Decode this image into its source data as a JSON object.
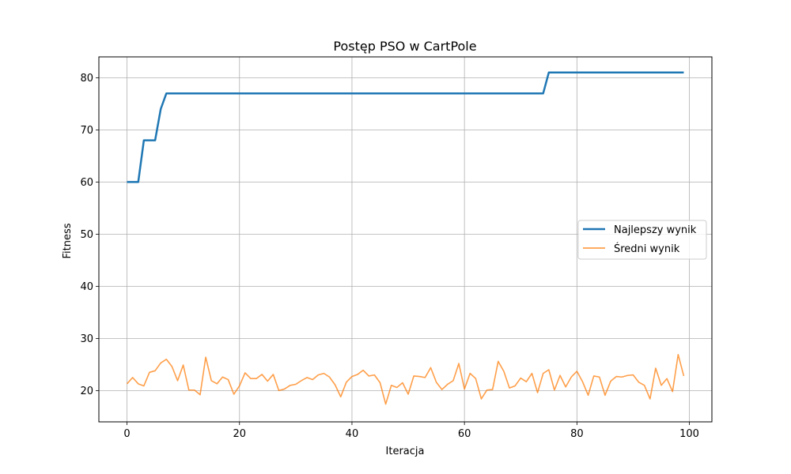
{
  "chart_data": {
    "type": "line",
    "title": "Postęp PSO w CartPole",
    "xlabel": "Iteracja",
    "ylabel": "Fitness",
    "xlim": [
      -5,
      104
    ],
    "ylim": [
      14,
      84
    ],
    "xticks": [
      0,
      20,
      40,
      60,
      80,
      100
    ],
    "yticks": [
      20,
      30,
      40,
      50,
      60,
      70,
      80
    ],
    "grid": true,
    "legend_position": "center-right",
    "series": [
      {
        "name": "Najlepszy wynik",
        "color": "#1f77b4",
        "x": [
          0,
          2,
          3,
          5,
          6,
          7,
          74,
          75,
          99
        ],
        "values": [
          60,
          60,
          68,
          68,
          74,
          77,
          77,
          81,
          81
        ]
      },
      {
        "name": "Średni wynik",
        "color": "#ff7f0e",
        "x": [
          0,
          1,
          2,
          3,
          4,
          5,
          6,
          7,
          8,
          9,
          10,
          11,
          12,
          13,
          14,
          15,
          16,
          17,
          18,
          19,
          20,
          21,
          22,
          23,
          24,
          25,
          26,
          27,
          28,
          29,
          30,
          31,
          32,
          33,
          34,
          35,
          36,
          37,
          38,
          39,
          40,
          41,
          42,
          43,
          44,
          45,
          46,
          47,
          48,
          49,
          50,
          51,
          52,
          53,
          54,
          55,
          56,
          57,
          58,
          59,
          60,
          61,
          62,
          63,
          64,
          65,
          66,
          67,
          68,
          69,
          70,
          71,
          72,
          73,
          74,
          75,
          76,
          77,
          78,
          79,
          80,
          81,
          82,
          83,
          84,
          85,
          86,
          87,
          88,
          89,
          90,
          91,
          92,
          93,
          94,
          95,
          96,
          97,
          98,
          99
        ],
        "values": [
          21.3,
          22.5,
          21.3,
          20.9,
          23.5,
          23.8,
          25.3,
          26.0,
          24.6,
          21.9,
          24.9,
          20.1,
          20.1,
          19.2,
          26.4,
          21.9,
          21.3,
          22.6,
          22.1,
          19.3,
          20.9,
          23.4,
          22.3,
          22.3,
          23.1,
          21.8,
          23.1,
          20.0,
          20.3,
          21.0,
          21.2,
          21.9,
          22.5,
          22.1,
          23.0,
          23.3,
          22.6,
          21.1,
          18.8,
          21.6,
          22.7,
          23.1,
          23.9,
          22.8,
          23.0,
          21.5,
          17.4,
          21.0,
          20.6,
          21.5,
          19.3,
          22.8,
          22.7,
          22.5,
          24.4,
          21.6,
          20.2,
          21.2,
          21.9,
          25.2,
          20.3,
          23.3,
          22.3,
          18.4,
          20.1,
          20.2,
          25.6,
          23.7,
          20.5,
          20.9,
          22.4,
          21.7,
          23.3,
          19.6,
          23.3,
          24.0,
          20.1,
          22.9,
          20.7,
          22.6,
          23.7,
          21.7,
          19.1,
          22.8,
          22.6,
          19.1,
          21.8,
          22.7,
          22.6,
          22.9,
          23.0,
          21.6,
          21.0,
          18.4,
          24.3,
          21.0,
          22.3,
          19.8,
          26.9,
          22.8
        ]
      }
    ]
  }
}
